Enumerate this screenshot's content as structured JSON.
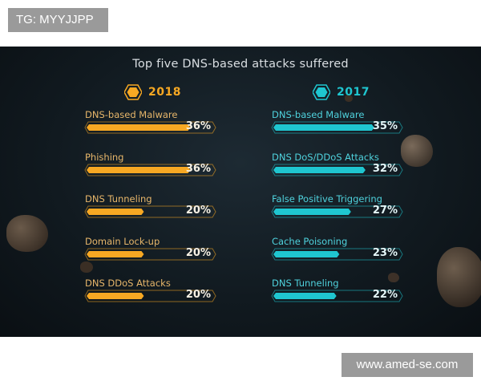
{
  "watermarks": {
    "top": "TG: MYYJJPP",
    "bottom": "www.amed-se.com"
  },
  "colors": {
    "orange": "#f7a823",
    "cyan": "#1fc6d0",
    "background": "#111a20"
  },
  "chart_data": [
    {
      "type": "bar",
      "title": "Top five DNS-based attacks suffered",
      "series_label": "2018",
      "categories": [
        "DNS-based Malware",
        "Phishing",
        "DNS Tunneling",
        "Domain Lock-up",
        "DNS DDoS Attacks"
      ],
      "values": [
        36,
        36,
        20,
        20,
        20
      ],
      "value_labels": [
        "36%",
        "36%",
        "20%",
        "20%",
        "20%"
      ],
      "unit": "%",
      "xlim": [
        0,
        45
      ],
      "color": "#f7a823"
    },
    {
      "type": "bar",
      "title": "Top five DNS-based attacks suffered",
      "series_label": "2017",
      "categories": [
        "DNS-based Malware",
        "DNS DoS/DDoS Attacks",
        "False Positive Triggering",
        "Cache Poisoning",
        "DNS Tunneling"
      ],
      "values": [
        35,
        32,
        27,
        23,
        22
      ],
      "value_labels": [
        "35%",
        "32%",
        "27%",
        "23%",
        "22%"
      ],
      "unit": "%",
      "xlim": [
        0,
        45
      ],
      "color": "#1fc6d0"
    }
  ]
}
